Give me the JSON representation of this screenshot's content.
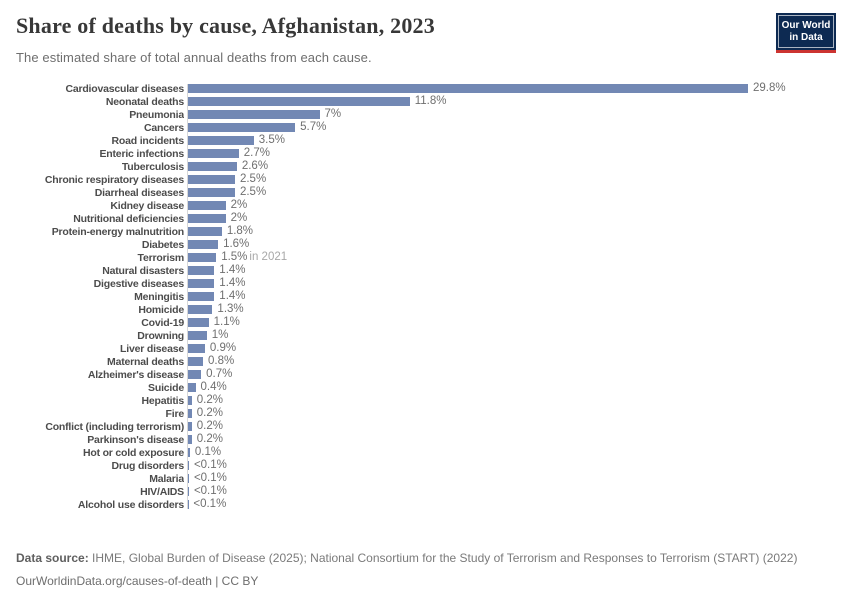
{
  "header": {
    "title": "Share of deaths by cause, Afghanistan, 2023",
    "subtitle": "The estimated share of total annual deaths from each cause.",
    "logo": {
      "line1": "Our World",
      "line2": "in Data",
      "bg_color": "#0d2a52",
      "accent_color": "#cc3431"
    }
  },
  "chart_data": {
    "type": "bar",
    "orientation": "horizontal",
    "title": "Share of deaths by cause, Afghanistan, 2023",
    "subtitle": "The estimated share of total annual deaths from each cause.",
    "unit": "%",
    "xlim": [
      0,
      30
    ],
    "grid": false,
    "legend": "none",
    "bar_color": "#7288b4",
    "rows": [
      {
        "label": "Cardiovascular diseases",
        "value": 29.8,
        "display": "29.8%"
      },
      {
        "label": "Neonatal deaths",
        "value": 11.8,
        "display": "11.8%"
      },
      {
        "label": "Pneumonia",
        "value": 7,
        "display": "7%"
      },
      {
        "label": "Cancers",
        "value": 5.7,
        "display": "5.7%"
      },
      {
        "label": "Road incidents",
        "value": 3.5,
        "display": "3.5%"
      },
      {
        "label": "Enteric infections",
        "value": 2.7,
        "display": "2.7%"
      },
      {
        "label": "Tuberculosis",
        "value": 2.6,
        "display": "2.6%"
      },
      {
        "label": "Chronic respiratory diseases",
        "value": 2.5,
        "display": "2.5%"
      },
      {
        "label": "Diarrheal diseases",
        "value": 2.5,
        "display": "2.5%"
      },
      {
        "label": "Kidney disease",
        "value": 2,
        "display": "2%"
      },
      {
        "label": "Nutritional deficiencies",
        "value": 2,
        "display": "2%"
      },
      {
        "label": "Protein-energy malnutrition",
        "value": 1.8,
        "display": "1.8%"
      },
      {
        "label": "Diabetes",
        "value": 1.6,
        "display": "1.6%"
      },
      {
        "label": "Terrorism",
        "value": 1.5,
        "display": "1.5%",
        "note": "in 2021"
      },
      {
        "label": "Natural disasters",
        "value": 1.4,
        "display": "1.4%"
      },
      {
        "label": "Digestive diseases",
        "value": 1.4,
        "display": "1.4%"
      },
      {
        "label": "Meningitis",
        "value": 1.4,
        "display": "1.4%"
      },
      {
        "label": "Homicide",
        "value": 1.3,
        "display": "1.3%"
      },
      {
        "label": "Covid-19",
        "value": 1.1,
        "display": "1.1%"
      },
      {
        "label": "Drowning",
        "value": 1,
        "display": "1%"
      },
      {
        "label": "Liver disease",
        "value": 0.9,
        "display": "0.9%"
      },
      {
        "label": "Maternal deaths",
        "value": 0.8,
        "display": "0.8%"
      },
      {
        "label": "Alzheimer's disease",
        "value": 0.7,
        "display": "0.7%"
      },
      {
        "label": "Suicide",
        "value": 0.4,
        "display": "0.4%"
      },
      {
        "label": "Hepatitis",
        "value": 0.2,
        "display": "0.2%"
      },
      {
        "label": "Fire",
        "value": 0.2,
        "display": "0.2%"
      },
      {
        "label": "Conflict (including terrorism)",
        "value": 0.2,
        "display": "0.2%"
      },
      {
        "label": "Parkinson's disease",
        "value": 0.2,
        "display": "0.2%"
      },
      {
        "label": "Hot or cold exposure",
        "value": 0.1,
        "display": "0.1%"
      },
      {
        "label": "Drug disorders",
        "value": 0.05,
        "display": "<0.1%"
      },
      {
        "label": "Malaria",
        "value": 0.05,
        "display": "<0.1%"
      },
      {
        "label": "HIV/AIDS",
        "value": 0.05,
        "display": "<0.1%"
      },
      {
        "label": "Alcohol use disorders",
        "value": 0.02,
        "display": "<0.1%"
      }
    ]
  },
  "footer": {
    "source_label": "Data source:",
    "source_text": "IHME, Global Burden of Disease (2025); National Consortium for the Study of Terrorism and Responses to Terrorism (START) (2022)",
    "license": "OurWorldinData.org/causes-of-death | CC BY"
  }
}
